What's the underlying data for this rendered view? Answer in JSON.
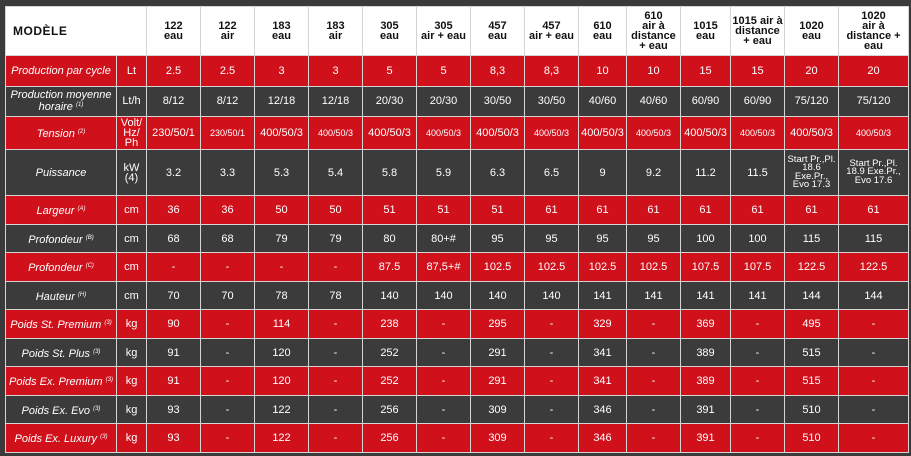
{
  "header": {
    "title": "MODÈLE",
    "models": [
      {
        "num": "122",
        "type": "eau"
      },
      {
        "num": "122",
        "type": "air"
      },
      {
        "num": "183",
        "type": "eau"
      },
      {
        "num": "183",
        "type": "air"
      },
      {
        "num": "305",
        "type": "eau"
      },
      {
        "num": "305",
        "type": "air + eau"
      },
      {
        "num": "457",
        "type": "eau"
      },
      {
        "num": "457",
        "type": "air + eau"
      },
      {
        "num": "610",
        "type": "eau"
      },
      {
        "num": "610",
        "type": "air à distance + eau"
      },
      {
        "num": "1015",
        "type": "eau"
      },
      {
        "num": "1015 air à",
        "type": "distance + eau"
      },
      {
        "num": "1020",
        "type": "eau"
      },
      {
        "num": "1020",
        "type": "air à distance + eau"
      }
    ]
  },
  "rows": [
    {
      "label": "Production par cycle",
      "sup": "",
      "unit": "Lt",
      "color": "red",
      "h": "tall",
      "values": [
        "2.5",
        "2.5",
        "3",
        "3",
        "5",
        "5",
        "8,3",
        "8,3",
        "10",
        "10",
        "15",
        "15",
        "20",
        "20"
      ]
    },
    {
      "label": "Production moyenne horaire",
      "sup": "(1)",
      "unit": "Lt/h",
      "color": "dark",
      "h": "tall",
      "values": [
        "8/12",
        "8/12",
        "12/18",
        "12/18",
        "20/30",
        "20/30",
        "30/50",
        "30/50",
        "40/60",
        "40/60",
        "60/90",
        "60/90",
        "75/120",
        "75/120"
      ]
    },
    {
      "label": "Tension",
      "sup": "(2)",
      "unit": "Volt/ Hz/ Ph",
      "color": "red",
      "h": "tall",
      "values": [
        "230/50/1",
        "230/50/1",
        "400/50/3",
        "400/50/3",
        "400/50/3",
        "400/50/3",
        "400/50/3",
        "400/50/3",
        "400/50/3",
        "400/50/3",
        "400/50/3",
        "400/50/3",
        "400/50/3",
        "400/50/3"
      ]
    },
    {
      "label": "Puissance",
      "sup": "",
      "unit": "kW (4)",
      "color": "dark",
      "h": "xtall",
      "values": [
        "3.2",
        "3.3",
        "5.3",
        "5.4",
        "5.8",
        "5.9",
        "6.3",
        "6.5",
        "9",
        "9.2",
        "11.2",
        "11.5",
        "Start Pr.,Pl. 18.6 Exe.Pr., Evo 17.3",
        "Start Pr.,Pl. 18.9 Exe.Pr., Evo 17.6"
      ]
    },
    {
      "label": "Largeur",
      "sup": "(A)",
      "unit": "cm",
      "color": "red",
      "h": "",
      "values": [
        "36",
        "36",
        "50",
        "50",
        "51",
        "51",
        "51",
        "61",
        "61",
        "61",
        "61",
        "61",
        "61",
        "61"
      ]
    },
    {
      "label": "Profondeur",
      "sup": "(B)",
      "unit": "cm",
      "color": "dark",
      "h": "",
      "values": [
        "68",
        "68",
        "79",
        "79",
        "80",
        "80+#",
        "95",
        "95",
        "95",
        "95",
        "100",
        "100",
        "115",
        "115"
      ]
    },
    {
      "label": "Profondeur",
      "sup": "(C)",
      "unit": "cm",
      "color": "red",
      "h": "",
      "values": [
        "-",
        "-",
        "-",
        "-",
        "87.5",
        "87,5+#",
        "102.5",
        "102.5",
        "102.5",
        "102.5",
        "107.5",
        "107.5",
        "122.5",
        "122.5"
      ]
    },
    {
      "label": "Hauteur",
      "sup": "(H)",
      "unit": "cm",
      "color": "dark",
      "h": "",
      "values": [
        "70",
        "70",
        "78",
        "78",
        "140",
        "140",
        "140",
        "140",
        "141",
        "141",
        "141",
        "141",
        "144",
        "144"
      ]
    },
    {
      "label": "Poids St. Premium",
      "sup": "(3)",
      "unit": "kg",
      "color": "red",
      "h": "",
      "values": [
        "90",
        "-",
        "114",
        "-",
        "238",
        "-",
        "295",
        "-",
        "329",
        "-",
        "369",
        "-",
        "495",
        "-"
      ]
    },
    {
      "label": "Poids St. Plus",
      "sup": "(3)",
      "unit": "kg",
      "color": "dark",
      "h": "",
      "values": [
        "91",
        "-",
        "120",
        "-",
        "252",
        "-",
        "291",
        "-",
        "341",
        "-",
        "389",
        "-",
        "515",
        "-"
      ]
    },
    {
      "label": "Poids Ex. Premium",
      "sup": "(3)",
      "unit": "kg",
      "color": "red",
      "h": "",
      "values": [
        "91",
        "-",
        "120",
        "-",
        "252",
        "-",
        "291",
        "-",
        "341",
        "-",
        "389",
        "-",
        "515",
        "-"
      ]
    },
    {
      "label": "Poids Ex. Evo",
      "sup": "(3)",
      "unit": "kg",
      "color": "dark",
      "h": "",
      "values": [
        "93",
        "-",
        "122",
        "-",
        "256",
        "-",
        "309",
        "-",
        "346",
        "-",
        "391",
        "-",
        "510",
        "-"
      ]
    },
    {
      "label": "Poids Ex. Luxury",
      "sup": "(3)",
      "unit": "kg",
      "color": "red",
      "h": "",
      "values": [
        "93",
        "-",
        "122",
        "-",
        "256",
        "-",
        "309",
        "-",
        "346",
        "-",
        "391",
        "-",
        "510",
        "-"
      ]
    }
  ],
  "colors": {
    "red": "#d0111c",
    "dark": "#3b3b3b",
    "header": "#ffffff",
    "border": "#d4d4d4"
  }
}
